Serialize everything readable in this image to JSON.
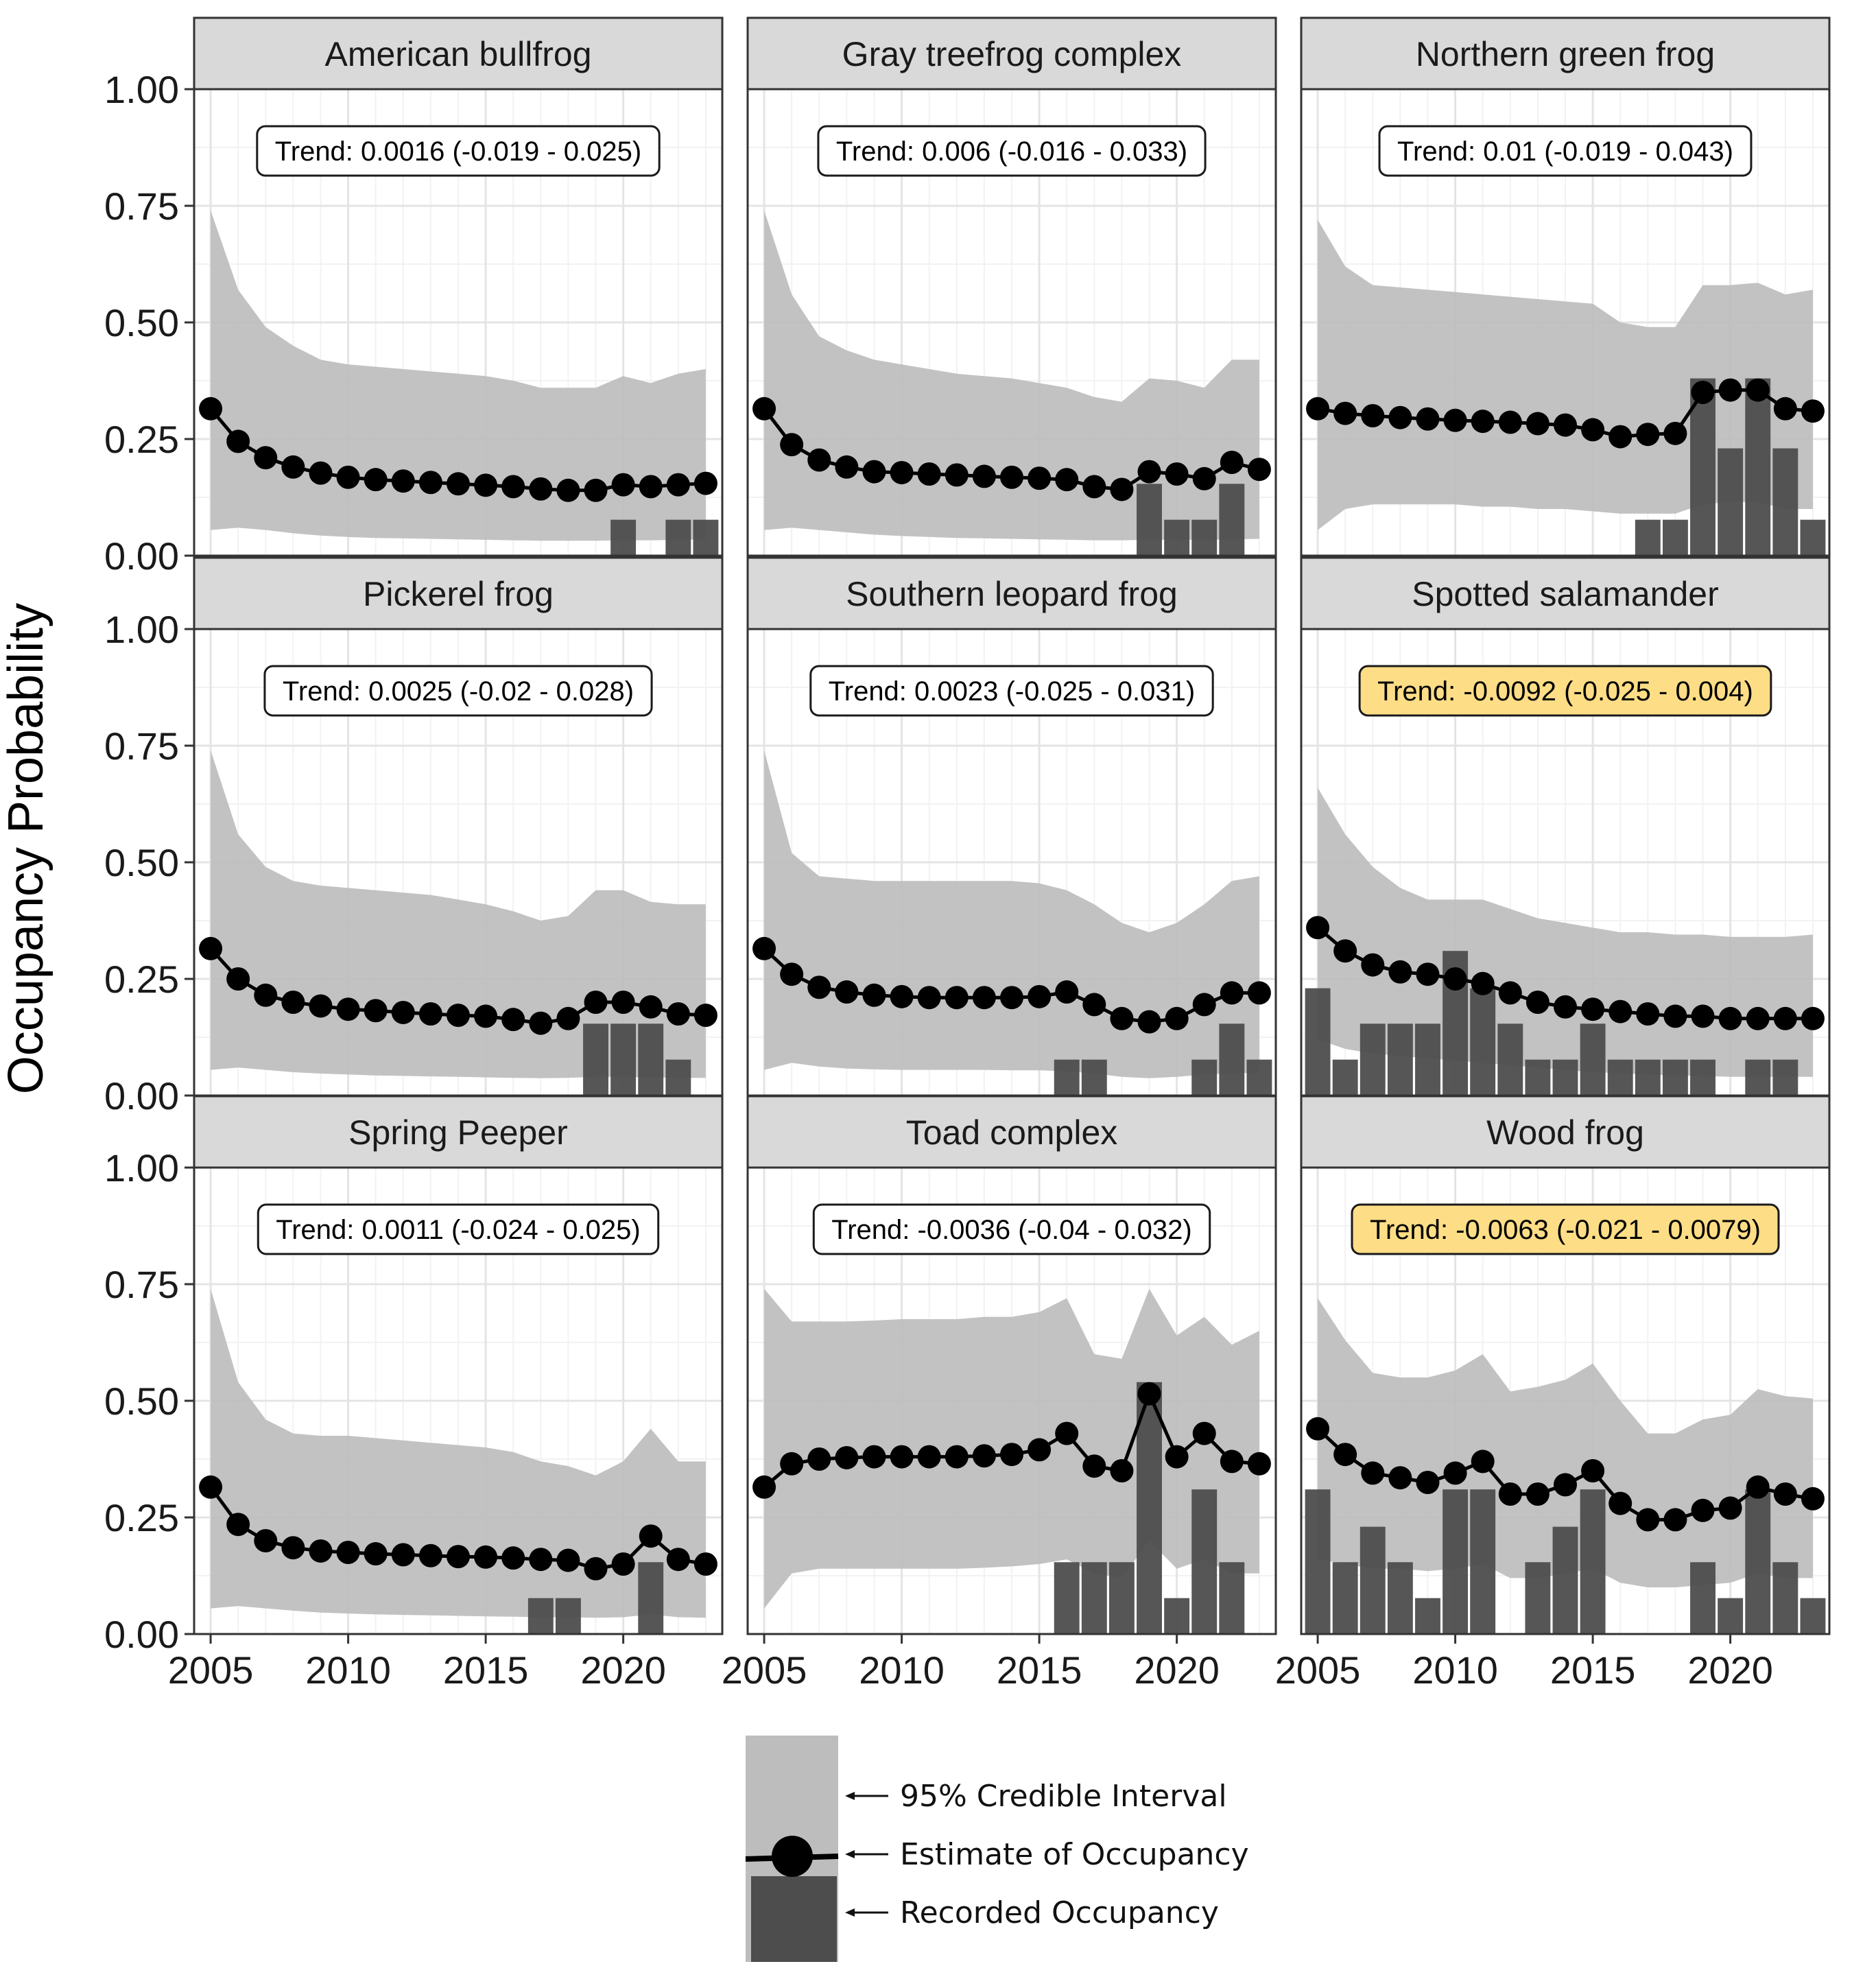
{
  "chart_data": {
    "type": "faceted-line-area-bar",
    "ylabel": "Occupancy Probability",
    "xlabel": "",
    "ylim": [
      0,
      1
    ],
    "xlim": [
      2004.4,
      2023.6
    ],
    "y_ticks": [
      "0.00",
      "0.25",
      "0.50",
      "0.75",
      "1.00"
    ],
    "x_ticks": [
      "2005",
      "2010",
      "2015",
      "2020"
    ],
    "grid": true,
    "years": [
      2005,
      2006,
      2007,
      2008,
      2009,
      2010,
      2011,
      2012,
      2013,
      2014,
      2015,
      2016,
      2017,
      2018,
      2019,
      2020,
      2021,
      2022,
      2023
    ],
    "panels": [
      {
        "title": "American bullfrog",
        "trend": "Trend: 0.0016 (-0.019 - 0.025)",
        "highlight": false,
        "estimate": [
          0.315,
          0.245,
          0.21,
          0.19,
          0.177,
          0.168,
          0.163,
          0.16,
          0.157,
          0.154,
          0.151,
          0.148,
          0.143,
          0.14,
          0.14,
          0.152,
          0.148,
          0.152,
          0.155
        ],
        "upper": [
          0.74,
          0.57,
          0.49,
          0.45,
          0.42,
          0.41,
          0.405,
          0.4,
          0.395,
          0.39,
          0.385,
          0.375,
          0.36,
          0.36,
          0.36,
          0.385,
          0.37,
          0.39,
          0.4
        ],
        "lower": [
          0.055,
          0.06,
          0.055,
          0.048,
          0.043,
          0.04,
          0.038,
          0.037,
          0.036,
          0.035,
          0.034,
          0.033,
          0.032,
          0.032,
          0.032,
          0.033,
          0.033,
          0.034,
          0.035
        ],
        "recorded": [
          0,
          0,
          0,
          0,
          0,
          0,
          0,
          0,
          0,
          0,
          0,
          0,
          0,
          0,
          0,
          0.077,
          0,
          0.077,
          0.077
        ]
      },
      {
        "title": "Gray treefrog complex",
        "trend": "Trend: 0.006 (-0.016 - 0.033)",
        "highlight": false,
        "estimate": [
          0.315,
          0.238,
          0.205,
          0.19,
          0.18,
          0.178,
          0.175,
          0.173,
          0.17,
          0.168,
          0.166,
          0.163,
          0.148,
          0.142,
          0.18,
          0.175,
          0.165,
          0.2,
          0.185
        ],
        "upper": [
          0.74,
          0.56,
          0.47,
          0.44,
          0.42,
          0.41,
          0.4,
          0.39,
          0.385,
          0.38,
          0.37,
          0.36,
          0.34,
          0.33,
          0.38,
          0.375,
          0.36,
          0.42,
          0.42
        ],
        "lower": [
          0.055,
          0.06,
          0.055,
          0.05,
          0.045,
          0.042,
          0.04,
          0.038,
          0.037,
          0.036,
          0.035,
          0.034,
          0.033,
          0.033,
          0.034,
          0.034,
          0.034,
          0.035,
          0.036
        ],
        "recorded": [
          0,
          0,
          0,
          0,
          0,
          0,
          0,
          0,
          0,
          0,
          0,
          0,
          0,
          0,
          0.154,
          0.077,
          0.077,
          0.154,
          0
        ]
      },
      {
        "title": "Northern green frog",
        "trend": "Trend: 0.01 (-0.019 - 0.043)",
        "highlight": false,
        "estimate": [
          0.315,
          0.305,
          0.3,
          0.296,
          0.293,
          0.29,
          0.288,
          0.286,
          0.283,
          0.28,
          0.27,
          0.255,
          0.26,
          0.262,
          0.35,
          0.355,
          0.355,
          0.315,
          0.31
        ],
        "upper": [
          0.72,
          0.62,
          0.58,
          0.575,
          0.57,
          0.565,
          0.56,
          0.555,
          0.55,
          0.545,
          0.54,
          0.5,
          0.49,
          0.49,
          0.58,
          0.58,
          0.585,
          0.56,
          0.57
        ],
        "lower": [
          0.055,
          0.1,
          0.11,
          0.11,
          0.11,
          0.11,
          0.105,
          0.105,
          0.1,
          0.1,
          0.095,
          0.09,
          0.09,
          0.09,
          0.11,
          0.115,
          0.115,
          0.1,
          0.1
        ],
        "recorded": [
          0,
          0,
          0,
          0,
          0,
          0,
          0,
          0,
          0,
          0,
          0,
          0,
          0.077,
          0.077,
          0.38,
          0.23,
          0.38,
          0.23,
          0.077
        ]
      },
      {
        "title": "Pickerel frog",
        "trend": "Trend: 0.0025 (-0.02 - 0.028)",
        "highlight": false,
        "estimate": [
          0.315,
          0.25,
          0.215,
          0.2,
          0.192,
          0.185,
          0.182,
          0.178,
          0.175,
          0.172,
          0.17,
          0.163,
          0.155,
          0.165,
          0.2,
          0.2,
          0.19,
          0.175,
          0.172
        ],
        "upper": [
          0.74,
          0.56,
          0.49,
          0.46,
          0.45,
          0.445,
          0.44,
          0.435,
          0.43,
          0.42,
          0.41,
          0.395,
          0.375,
          0.385,
          0.44,
          0.44,
          0.415,
          0.41,
          0.41
        ],
        "lower": [
          0.055,
          0.06,
          0.055,
          0.05,
          0.047,
          0.045,
          0.043,
          0.042,
          0.041,
          0.04,
          0.039,
          0.038,
          0.037,
          0.038,
          0.04,
          0.04,
          0.039,
          0.038,
          0.038
        ],
        "recorded": [
          0,
          0,
          0,
          0,
          0,
          0,
          0,
          0,
          0,
          0,
          0,
          0,
          0,
          0,
          0.154,
          0.154,
          0.154,
          0.077,
          0
        ]
      },
      {
        "title": "Southern leopard frog",
        "trend": "Trend: 0.0023 (-0.025 - 0.031)",
        "highlight": false,
        "estimate": [
          0.315,
          0.26,
          0.232,
          0.222,
          0.215,
          0.212,
          0.21,
          0.21,
          0.21,
          0.21,
          0.212,
          0.222,
          0.195,
          0.165,
          0.158,
          0.165,
          0.195,
          0.22,
          0.22
        ],
        "upper": [
          0.74,
          0.52,
          0.47,
          0.465,
          0.46,
          0.46,
          0.46,
          0.46,
          0.46,
          0.46,
          0.455,
          0.44,
          0.41,
          0.37,
          0.35,
          0.37,
          0.41,
          0.46,
          0.47
        ],
        "lower": [
          0.055,
          0.07,
          0.062,
          0.058,
          0.056,
          0.055,
          0.055,
          0.055,
          0.055,
          0.054,
          0.054,
          0.052,
          0.047,
          0.04,
          0.037,
          0.04,
          0.045,
          0.048,
          0.048
        ],
        "recorded": [
          0,
          0,
          0,
          0,
          0,
          0,
          0,
          0,
          0,
          0,
          0,
          0.077,
          0.077,
          0,
          0,
          0,
          0.077,
          0.154,
          0.077
        ]
      },
      {
        "title": "Spotted salamander",
        "trend": "Trend: -0.0092 (-0.025 - 0.004)",
        "highlight": true,
        "estimate": [
          0.36,
          0.31,
          0.28,
          0.265,
          0.26,
          0.25,
          0.24,
          0.22,
          0.2,
          0.19,
          0.185,
          0.18,
          0.175,
          0.17,
          0.17,
          0.165,
          0.165,
          0.165,
          0.165
        ],
        "upper": [
          0.66,
          0.56,
          0.49,
          0.445,
          0.42,
          0.42,
          0.42,
          0.4,
          0.38,
          0.37,
          0.36,
          0.35,
          0.35,
          0.345,
          0.345,
          0.34,
          0.34,
          0.34,
          0.345
        ],
        "lower": [
          0.12,
          0.1,
          0.09,
          0.085,
          0.08,
          0.075,
          0.07,
          0.065,
          0.06,
          0.055,
          0.05,
          0.048,
          0.045,
          0.043,
          0.042,
          0.04,
          0.04,
          0.04,
          0.04
        ],
        "recorded": [
          0.23,
          0.077,
          0.154,
          0.154,
          0.154,
          0.31,
          0.23,
          0.154,
          0.077,
          0.077,
          0.154,
          0.077,
          0.077,
          0.077,
          0.077,
          0,
          0.077,
          0.077,
          0
        ]
      },
      {
        "title": "Spring Peeper",
        "trend": "Trend: 0.0011 (-0.024 - 0.025)",
        "highlight": false,
        "estimate": [
          0.315,
          0.235,
          0.2,
          0.185,
          0.178,
          0.175,
          0.172,
          0.17,
          0.168,
          0.166,
          0.165,
          0.163,
          0.16,
          0.158,
          0.14,
          0.15,
          0.21,
          0.16,
          0.15
        ],
        "upper": [
          0.74,
          0.54,
          0.46,
          0.43,
          0.425,
          0.425,
          0.42,
          0.415,
          0.41,
          0.405,
          0.4,
          0.39,
          0.37,
          0.36,
          0.34,
          0.37,
          0.44,
          0.37,
          0.37
        ],
        "lower": [
          0.055,
          0.06,
          0.055,
          0.05,
          0.046,
          0.044,
          0.042,
          0.041,
          0.04,
          0.039,
          0.038,
          0.037,
          0.036,
          0.036,
          0.035,
          0.036,
          0.042,
          0.036,
          0.035
        ],
        "recorded": [
          0,
          0,
          0,
          0,
          0,
          0,
          0,
          0,
          0,
          0,
          0,
          0,
          0.077,
          0.077,
          0,
          0,
          0.154,
          0,
          0
        ]
      },
      {
        "title": "Toad complex",
        "trend": "Trend: -0.0036 (-0.04 - 0.032)",
        "highlight": false,
        "estimate": [
          0.315,
          0.365,
          0.375,
          0.378,
          0.38,
          0.38,
          0.38,
          0.38,
          0.382,
          0.385,
          0.395,
          0.43,
          0.36,
          0.35,
          0.515,
          0.38,
          0.43,
          0.37,
          0.365
        ],
        "upper": [
          0.74,
          0.67,
          0.67,
          0.67,
          0.672,
          0.675,
          0.675,
          0.675,
          0.68,
          0.68,
          0.69,
          0.72,
          0.6,
          0.59,
          0.74,
          0.64,
          0.68,
          0.62,
          0.65
        ],
        "lower": [
          0.055,
          0.13,
          0.14,
          0.14,
          0.14,
          0.14,
          0.14,
          0.14,
          0.142,
          0.145,
          0.15,
          0.16,
          0.13,
          0.12,
          0.2,
          0.14,
          0.16,
          0.13,
          0.13
        ],
        "recorded": [
          0,
          0,
          0,
          0,
          0,
          0,
          0,
          0,
          0,
          0,
          0,
          0.154,
          0.154,
          0.154,
          0.54,
          0.077,
          0.31,
          0.154,
          0
        ]
      },
      {
        "title": "Wood frog",
        "trend": "Trend: -0.0063 (-0.021 - 0.0079)",
        "highlight": true,
        "estimate": [
          0.44,
          0.385,
          0.345,
          0.335,
          0.325,
          0.345,
          0.37,
          0.3,
          0.3,
          0.32,
          0.35,
          0.28,
          0.245,
          0.245,
          0.265,
          0.27,
          0.315,
          0.3,
          0.29
        ],
        "upper": [
          0.72,
          0.63,
          0.56,
          0.55,
          0.55,
          0.565,
          0.6,
          0.52,
          0.53,
          0.545,
          0.58,
          0.5,
          0.43,
          0.43,
          0.46,
          0.47,
          0.525,
          0.51,
          0.505
        ],
        "lower": [
          0.16,
          0.15,
          0.14,
          0.14,
          0.135,
          0.14,
          0.15,
          0.12,
          0.12,
          0.13,
          0.14,
          0.11,
          0.1,
          0.1,
          0.105,
          0.11,
          0.13,
          0.12,
          0.12
        ],
        "recorded": [
          0.31,
          0.154,
          0.23,
          0.154,
          0.077,
          0.31,
          0.31,
          0,
          0.154,
          0.23,
          0.31,
          0,
          0,
          0,
          0.154,
          0.077,
          0.31,
          0.154,
          0.077
        ]
      }
    ],
    "legend": {
      "items": [
        "95% Credible Interval",
        "Estimate of Occupancy",
        "Recorded Occupancy"
      ]
    },
    "colors": {
      "ribbon": "#bdbdbd",
      "bar": "#4d4d4d",
      "line": "#000000",
      "point": "#000000",
      "strip": "#d9d9d9",
      "highlight": "#fddd86",
      "grid_major": "#e4e4e4",
      "grid_minor": "#f2f2f2",
      "border": "#333333"
    }
  }
}
